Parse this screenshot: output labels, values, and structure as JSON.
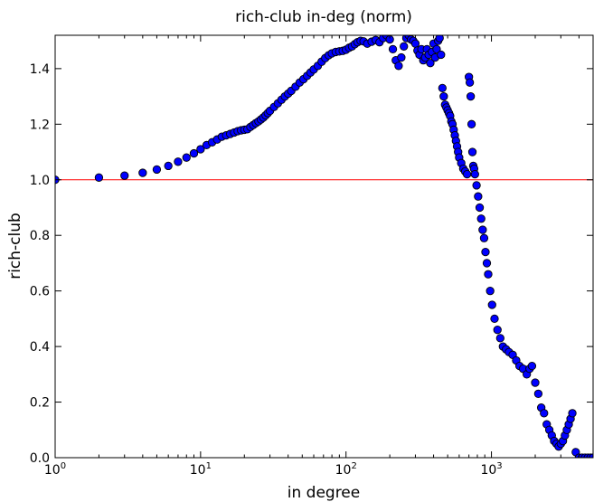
{
  "chart_data": {
    "type": "scatter",
    "title": "rich-club in-deg (norm)",
    "xlabel": "in degree",
    "ylabel": "rich-club",
    "xscale": "log",
    "xlim": [
      1,
      5000
    ],
    "ylim": [
      0.0,
      1.52
    ],
    "grid": false,
    "legend": "none",
    "x_ticks": [
      {
        "value": 1,
        "base": "10",
        "exp": "0"
      },
      {
        "value": 10,
        "base": "10",
        "exp": "1"
      },
      {
        "value": 100,
        "base": "10",
        "exp": "2"
      },
      {
        "value": 1000,
        "base": "10",
        "exp": "3"
      }
    ],
    "y_ticks": [
      {
        "value": 0.0,
        "label": "0.0"
      },
      {
        "value": 0.2,
        "label": "0.2"
      },
      {
        "value": 0.4,
        "label": "0.4"
      },
      {
        "value": 0.6,
        "label": "0.6"
      },
      {
        "value": 0.8,
        "label": "0.8"
      },
      {
        "value": 1.0,
        "label": "1.0"
      },
      {
        "value": 1.2,
        "label": "1.2"
      },
      {
        "value": 1.4,
        "label": "1.4"
      }
    ],
    "reference_line": {
      "y": 1.0,
      "color": "#ff0000"
    },
    "marker_color": "#0000ff",
    "marker_edge_color": "#000000",
    "points": [
      [
        1,
        1.0
      ],
      [
        2,
        1.008
      ],
      [
        3,
        1.015
      ],
      [
        4,
        1.025
      ],
      [
        5,
        1.037
      ],
      [
        6,
        1.05
      ],
      [
        7,
        1.065
      ],
      [
        8,
        1.08
      ],
      [
        9,
        1.095
      ],
      [
        10,
        1.11
      ],
      [
        11,
        1.125
      ],
      [
        12,
        1.135
      ],
      [
        13,
        1.145
      ],
      [
        14,
        1.155
      ],
      [
        15,
        1.16
      ],
      [
        16,
        1.165
      ],
      [
        17,
        1.17
      ],
      [
        18,
        1.175
      ],
      [
        19,
        1.178
      ],
      [
        20,
        1.18
      ],
      [
        21,
        1.182
      ],
      [
        22,
        1.19
      ],
      [
        23,
        1.197
      ],
      [
        24,
        1.204
      ],
      [
        25,
        1.21
      ],
      [
        26,
        1.217
      ],
      [
        27,
        1.224
      ],
      [
        28,
        1.232
      ],
      [
        29,
        1.24
      ],
      [
        30,
        1.248
      ],
      [
        32,
        1.262
      ],
      [
        34,
        1.275
      ],
      [
        36,
        1.288
      ],
      [
        38,
        1.3
      ],
      [
        40,
        1.31
      ],
      [
        42,
        1.32
      ],
      [
        45,
        1.335
      ],
      [
        48,
        1.35
      ],
      [
        51,
        1.362
      ],
      [
        54,
        1.374
      ],
      [
        57,
        1.386
      ],
      [
        60,
        1.397
      ],
      [
        64,
        1.41
      ],
      [
        68,
        1.425
      ],
      [
        72,
        1.438
      ],
      [
        76,
        1.448
      ],
      [
        80,
        1.455
      ],
      [
        85,
        1.46
      ],
      [
        90,
        1.462
      ],
      [
        95,
        1.464
      ],
      [
        100,
        1.468
      ],
      [
        105,
        1.475
      ],
      [
        110,
        1.48
      ],
      [
        115,
        1.488
      ],
      [
        120,
        1.495
      ],
      [
        126,
        1.5
      ],
      [
        132,
        1.498
      ],
      [
        140,
        1.49
      ],
      [
        150,
        1.497
      ],
      [
        160,
        1.503
      ],
      [
        170,
        1.495
      ],
      [
        180,
        1.51
      ],
      [
        190,
        1.52
      ],
      [
        200,
        1.505
      ],
      [
        210,
        1.47
      ],
      [
        220,
        1.43
      ],
      [
        230,
        1.41
      ],
      [
        240,
        1.44
      ],
      [
        250,
        1.48
      ],
      [
        260,
        1.51
      ],
      [
        270,
        1.52
      ],
      [
        280,
        1.505
      ],
      [
        290,
        1.5
      ],
      [
        300,
        1.49
      ],
      [
        310,
        1.465
      ],
      [
        320,
        1.45
      ],
      [
        330,
        1.47
      ],
      [
        340,
        1.43
      ],
      [
        350,
        1.44
      ],
      [
        360,
        1.47
      ],
      [
        370,
        1.45
      ],
      [
        380,
        1.42
      ],
      [
        390,
        1.46
      ],
      [
        400,
        1.49
      ],
      [
        410,
        1.44
      ],
      [
        420,
        1.47
      ],
      [
        430,
        1.5
      ],
      [
        440,
        1.51
      ],
      [
        450,
        1.45
      ],
      [
        460,
        1.33
      ],
      [
        470,
        1.3
      ],
      [
        480,
        1.27
      ],
      [
        490,
        1.26
      ],
      [
        500,
        1.25
      ],
      [
        510,
        1.24
      ],
      [
        520,
        1.23
      ],
      [
        530,
        1.21
      ],
      [
        540,
        1.2
      ],
      [
        550,
        1.18
      ],
      [
        560,
        1.16
      ],
      [
        570,
        1.14
      ],
      [
        580,
        1.12
      ],
      [
        590,
        1.1
      ],
      [
        600,
        1.08
      ],
      [
        620,
        1.06
      ],
      [
        640,
        1.04
      ],
      [
        660,
        1.03
      ],
      [
        680,
        1.02
      ],
      [
        700,
        1.37
      ],
      [
        710,
        1.35
      ],
      [
        720,
        1.3
      ],
      [
        730,
        1.2
      ],
      [
        740,
        1.1
      ],
      [
        750,
        1.05
      ],
      [
        760,
        1.04
      ],
      [
        770,
        1.02
      ],
      [
        790,
        0.98
      ],
      [
        810,
        0.94
      ],
      [
        830,
        0.9
      ],
      [
        850,
        0.86
      ],
      [
        870,
        0.82
      ],
      [
        890,
        0.79
      ],
      [
        910,
        0.74
      ],
      [
        930,
        0.7
      ],
      [
        950,
        0.66
      ],
      [
        980,
        0.6
      ],
      [
        1010,
        0.55
      ],
      [
        1050,
        0.5
      ],
      [
        1100,
        0.46
      ],
      [
        1150,
        0.43
      ],
      [
        1200,
        0.4
      ],
      [
        1260,
        0.39
      ],
      [
        1320,
        0.38
      ],
      [
        1400,
        0.37
      ],
      [
        1480,
        0.35
      ],
      [
        1560,
        0.33
      ],
      [
        1650,
        0.32
      ],
      [
        1750,
        0.3
      ],
      [
        1830,
        0.32
      ],
      [
        1900,
        0.33
      ],
      [
        2000,
        0.27
      ],
      [
        2100,
        0.23
      ],
      [
        2200,
        0.18
      ],
      [
        2300,
        0.16
      ],
      [
        2400,
        0.12
      ],
      [
        2500,
        0.1
      ],
      [
        2600,
        0.08
      ],
      [
        2700,
        0.06
      ],
      [
        2800,
        0.05
      ],
      [
        2900,
        0.04
      ],
      [
        3000,
        0.05
      ],
      [
        3100,
        0.06
      ],
      [
        3200,
        0.08
      ],
      [
        3300,
        0.1
      ],
      [
        3400,
        0.12
      ],
      [
        3500,
        0.14
      ],
      [
        3600,
        0.16
      ],
      [
        3800,
        0.02
      ],
      [
        4000,
        0.0
      ],
      [
        4200,
        0.0
      ],
      [
        4400,
        0.0
      ],
      [
        4600,
        0.0
      ],
      [
        4800,
        0.0
      ],
      [
        5000,
        0.0
      ]
    ]
  }
}
